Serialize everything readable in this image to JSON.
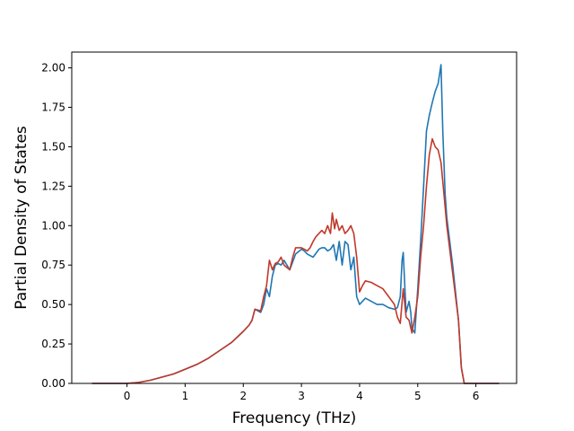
{
  "chart_data": {
    "type": "line",
    "title": "",
    "xlabel": "Frequency (THz)",
    "ylabel": "Partial Density of States",
    "xlim": [
      -0.95,
      6.7
    ],
    "ylim": [
      0.0,
      2.1
    ],
    "xticks": [
      0,
      1,
      2,
      3,
      4,
      5,
      6
    ],
    "xtick_labels": [
      "0",
      "1",
      "2",
      "3",
      "4",
      "5",
      "6"
    ],
    "yticks": [
      0.0,
      0.25,
      0.5,
      0.75,
      1.0,
      1.25,
      1.5,
      1.75,
      2.0
    ],
    "ytick_labels": [
      "0.00",
      "0.25",
      "0.50",
      "0.75",
      "1.00",
      "1.25",
      "1.50",
      "1.75",
      "2.00"
    ],
    "grid": false,
    "legend": "none",
    "series": [
      {
        "color": "#1f77b4",
        "x": [
          -0.6,
          0.0,
          0.2,
          0.4,
          0.6,
          0.8,
          1.0,
          1.2,
          1.4,
          1.6,
          1.8,
          2.0,
          2.1,
          2.15,
          2.2,
          2.3,
          2.35,
          2.4,
          2.45,
          2.5,
          2.55,
          2.6,
          2.65,
          2.7,
          2.8,
          2.9,
          3.0,
          3.05,
          3.1,
          3.2,
          3.3,
          3.35,
          3.4,
          3.45,
          3.5,
          3.55,
          3.6,
          3.65,
          3.7,
          3.75,
          3.8,
          3.85,
          3.9,
          3.95,
          4.0,
          4.05,
          4.1,
          4.2,
          4.3,
          4.4,
          4.5,
          4.6,
          4.65,
          4.7,
          4.73,
          4.75,
          4.78,
          4.8,
          4.85,
          4.88,
          4.9,
          4.95,
          5.0,
          5.05,
          5.1,
          5.15,
          5.2,
          5.25,
          5.3,
          5.35,
          5.4,
          5.43,
          5.47,
          5.5,
          5.6,
          5.7,
          5.75,
          5.8,
          6.0,
          6.4
        ],
        "y": [
          0.0,
          0.0,
          0.006,
          0.02,
          0.04,
          0.06,
          0.09,
          0.12,
          0.16,
          0.21,
          0.26,
          0.33,
          0.37,
          0.4,
          0.47,
          0.45,
          0.5,
          0.6,
          0.55,
          0.68,
          0.75,
          0.76,
          0.75,
          0.78,
          0.72,
          0.82,
          0.85,
          0.84,
          0.82,
          0.8,
          0.85,
          0.86,
          0.86,
          0.84,
          0.85,
          0.88,
          0.78,
          0.9,
          0.75,
          0.9,
          0.88,
          0.72,
          0.8,
          0.55,
          0.5,
          0.52,
          0.54,
          0.52,
          0.5,
          0.5,
          0.48,
          0.47,
          0.48,
          0.55,
          0.78,
          0.83,
          0.6,
          0.45,
          0.52,
          0.45,
          0.35,
          0.32,
          0.6,
          0.9,
          1.25,
          1.6,
          1.7,
          1.78,
          1.85,
          1.9,
          2.02,
          1.6,
          1.2,
          1.05,
          0.75,
          0.4,
          0.1,
          0.0,
          0.0,
          0.0
        ]
      },
      {
        "color": "#c0392b",
        "x": [
          -0.6,
          0.0,
          0.2,
          0.4,
          0.6,
          0.8,
          1.0,
          1.2,
          1.4,
          1.6,
          1.8,
          2.0,
          2.1,
          2.15,
          2.2,
          2.3,
          2.35,
          2.4,
          2.45,
          2.5,
          2.55,
          2.6,
          2.65,
          2.7,
          2.8,
          2.85,
          2.9,
          3.0,
          3.05,
          3.1,
          3.15,
          3.2,
          3.25,
          3.3,
          3.35,
          3.4,
          3.45,
          3.5,
          3.53,
          3.57,
          3.6,
          3.65,
          3.7,
          3.75,
          3.8,
          3.85,
          3.9,
          3.95,
          4.0,
          4.05,
          4.1,
          4.2,
          4.3,
          4.4,
          4.5,
          4.6,
          4.65,
          4.7,
          4.75,
          4.8,
          4.85,
          4.9,
          4.95,
          5.0,
          5.05,
          5.1,
          5.15,
          5.2,
          5.25,
          5.3,
          5.35,
          5.4,
          5.45,
          5.5,
          5.6,
          5.7,
          5.75,
          5.8,
          6.0,
          6.4
        ],
        "y": [
          0.0,
          0.0,
          0.006,
          0.02,
          0.04,
          0.06,
          0.09,
          0.12,
          0.16,
          0.21,
          0.26,
          0.33,
          0.37,
          0.4,
          0.47,
          0.46,
          0.55,
          0.62,
          0.78,
          0.72,
          0.76,
          0.77,
          0.8,
          0.75,
          0.72,
          0.8,
          0.86,
          0.86,
          0.85,
          0.84,
          0.86,
          0.9,
          0.93,
          0.95,
          0.97,
          0.95,
          1.0,
          0.95,
          1.08,
          0.98,
          1.04,
          0.97,
          1.0,
          0.95,
          0.97,
          1.0,
          0.95,
          0.8,
          0.58,
          0.62,
          0.65,
          0.64,
          0.62,
          0.6,
          0.55,
          0.5,
          0.42,
          0.38,
          0.6,
          0.42,
          0.4,
          0.32,
          0.42,
          0.55,
          0.8,
          1.0,
          1.25,
          1.45,
          1.55,
          1.5,
          1.48,
          1.4,
          1.2,
          1.0,
          0.7,
          0.4,
          0.1,
          0.0,
          0.0,
          0.0
        ]
      }
    ]
  }
}
